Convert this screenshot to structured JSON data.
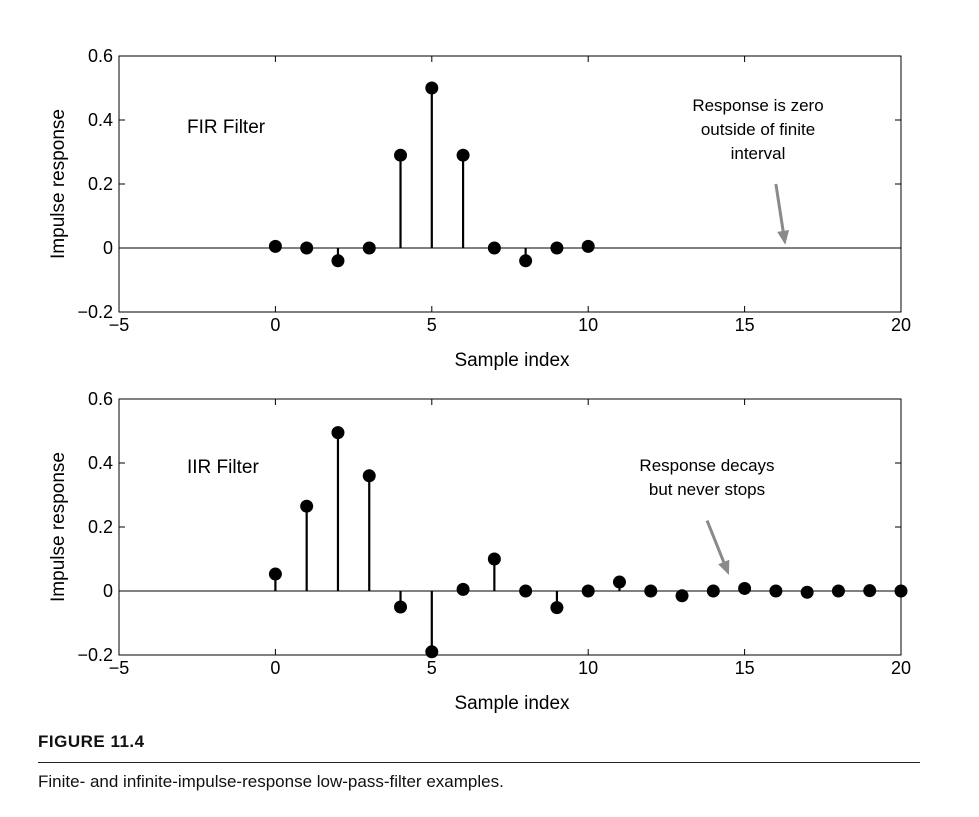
{
  "chart_data": [
    {
      "type": "stem",
      "panel_title": "FIR Filter",
      "xlabel": "Sample index",
      "ylabel": "Impulse response",
      "xlim": [
        -5,
        20
      ],
      "ylim": [
        -0.2,
        0.6
      ],
      "xticks": [
        -5,
        0,
        5,
        10,
        15,
        20
      ],
      "yticks": [
        -0.2,
        0,
        0.2,
        0.4,
        0.6
      ],
      "ytick_labels": [
        "−0.2",
        "0",
        "0.2",
        "0.4",
        "0.6"
      ],
      "xtick_labels": [
        "−5",
        "0",
        "5",
        "10",
        "15",
        "20"
      ],
      "x": [
        0,
        1,
        2,
        3,
        4,
        5,
        6,
        7,
        8,
        9,
        10
      ],
      "values": [
        0.005,
        0.0,
        -0.04,
        0.0,
        0.29,
        0.5,
        0.29,
        0.0,
        -0.04,
        0.0,
        0.005
      ],
      "annotation": {
        "lines": [
          "Response is zero",
          "outside of finite",
          "interval"
        ],
        "arrow_from": [
          16.0,
          0.2
        ],
        "arrow_to": [
          16.3,
          0.01
        ]
      },
      "grid": false
    },
    {
      "type": "stem",
      "panel_title": "IIR Filter",
      "xlabel": "Sample index",
      "ylabel": "Impulse response",
      "xlim": [
        -5,
        20
      ],
      "ylim": [
        -0.2,
        0.6
      ],
      "xticks": [
        -5,
        0,
        5,
        10,
        15,
        20
      ],
      "yticks": [
        -0.2,
        0,
        0.2,
        0.4,
        0.6
      ],
      "ytick_labels": [
        "−0.2",
        "0",
        "0.2",
        "0.4",
        "0.6"
      ],
      "xtick_labels": [
        "−5",
        "0",
        "5",
        "10",
        "15",
        "20"
      ],
      "x": [
        0,
        1,
        2,
        3,
        4,
        5,
        6,
        7,
        8,
        9,
        10,
        11,
        12,
        13,
        14,
        15,
        16,
        17,
        18,
        19,
        20
      ],
      "values": [
        0.053,
        0.265,
        0.495,
        0.36,
        -0.05,
        -0.19,
        0.005,
        0.1,
        0.0,
        -0.052,
        0.0,
        0.028,
        0.0,
        -0.015,
        0.0,
        0.008,
        0.0,
        -0.004,
        0.0,
        0.001,
        0.0
      ],
      "annotation": {
        "lines": [
          "Response decays",
          "but never stops"
        ],
        "arrow_from": [
          13.8,
          0.22
        ],
        "arrow_to": [
          14.5,
          0.05
        ]
      },
      "grid": false
    }
  ],
  "figure": {
    "number": "FIGURE 11.4",
    "caption": "Finite- and infinite-impulse-response low-pass-filter examples."
  }
}
